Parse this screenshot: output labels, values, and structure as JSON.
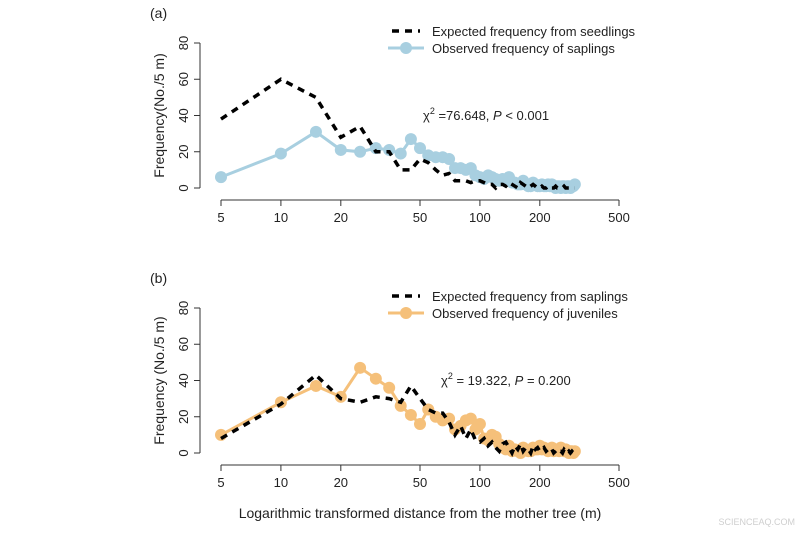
{
  "chart_data": [
    {
      "type": "line",
      "panel_label": "(a)",
      "ylabel": "Frequency(No./5 m)",
      "xlabel": "Logarithmic transformed distance from the mother tree (m)",
      "x_scale": "log",
      "xlim": [
        5,
        500
      ],
      "ylim": [
        0,
        80
      ],
      "x_ticks": [
        "5",
        "10",
        "20",
        "50",
        "100",
        "200",
        "500"
      ],
      "y_ticks": [
        "0",
        "20",
        "40",
        "60",
        "80"
      ],
      "annotation": {
        "chi": "χ",
        "sup": "2",
        "stat": " =76.648, ",
        "p": "P",
        "rest": " < 0.001"
      },
      "legend_position": "top-right",
      "x": [
        5,
        10,
        15,
        20,
        25,
        30,
        35,
        40,
        45,
        50,
        55,
        60,
        65,
        70,
        75,
        80,
        85,
        90,
        95,
        100,
        105,
        110,
        115,
        120,
        125,
        130,
        135,
        140,
        145,
        150,
        155,
        160,
        165,
        170,
        175,
        180,
        185,
        190,
        195,
        200,
        205,
        210,
        215,
        220,
        225,
        230,
        235,
        240,
        245,
        250,
        255,
        260,
        265,
        270,
        275,
        280,
        285,
        290,
        295,
        300
      ],
      "series": [
        {
          "name": "Expected frequency from seedlings",
          "style": "dashed",
          "color": "#000000",
          "values": [
            38,
            60,
            50,
            28,
            34,
            20,
            20,
            10,
            10,
            16,
            14,
            10,
            7,
            8,
            4,
            4,
            4,
            3,
            4,
            4,
            3,
            2,
            2,
            0,
            2,
            2,
            1,
            3,
            2,
            1,
            0,
            3,
            2,
            1,
            0,
            1,
            2,
            1,
            0,
            0,
            1,
            0,
            0,
            1,
            0,
            0,
            0,
            1,
            0,
            0,
            0,
            0,
            1,
            0,
            0,
            0,
            0,
            0,
            0,
            0
          ]
        },
        {
          "name": "Observed frequency of saplings",
          "style": "line+points",
          "color": "#a8cfe0",
          "values": [
            6,
            19,
            31,
            21,
            20,
            22,
            21,
            19,
            27,
            22,
            18,
            17,
            17,
            16,
            11,
            11,
            10,
            11,
            7,
            6,
            5,
            7,
            6,
            5,
            4,
            5,
            4,
            6,
            3,
            3,
            2,
            2,
            4,
            2,
            1,
            1,
            3,
            2,
            1,
            1,
            2,
            1,
            1,
            2,
            1,
            2,
            1,
            0,
            1,
            1,
            0,
            1,
            1,
            0,
            1,
            1,
            0,
            1,
            1,
            2
          ]
        }
      ]
    },
    {
      "type": "line",
      "panel_label": "(b)",
      "ylabel": "Frequency (No./5 m)",
      "x_scale": "log",
      "xlim": [
        5,
        500
      ],
      "ylim": [
        0,
        80
      ],
      "x_ticks": [
        "5",
        "10",
        "20",
        "50",
        "100",
        "200",
        "500"
      ],
      "y_ticks": [
        "0",
        "20",
        "40",
        "60",
        "80"
      ],
      "annotation": {
        "chi": "χ",
        "sup": "2",
        "stat": " = 19.322, ",
        "p": "P",
        "rest": " = 0.200"
      },
      "legend_position": "top-right",
      "x": [
        5,
        10,
        15,
        20,
        25,
        30,
        35,
        40,
        45,
        50,
        55,
        60,
        65,
        70,
        75,
        80,
        85,
        90,
        95,
        100,
        105,
        110,
        115,
        120,
        125,
        130,
        135,
        140,
        145,
        150,
        155,
        160,
        165,
        170,
        175,
        180,
        185,
        190,
        195,
        200,
        205,
        210,
        215,
        220,
        225,
        230,
        235,
        240,
        245,
        250,
        255,
        260,
        265,
        270,
        275,
        280,
        285,
        290,
        295,
        300
      ],
      "series": [
        {
          "name": "Expected frequency from saplings",
          "style": "dashed",
          "color": "#000000",
          "values": [
            8,
            27,
            43,
            30,
            28,
            31,
            30,
            28,
            37,
            30,
            24,
            22,
            22,
            17,
            10,
            15,
            8,
            13,
            7,
            6,
            8,
            4,
            6,
            3,
            1,
            5,
            6,
            3,
            0,
            4,
            2,
            5,
            1,
            3,
            2,
            0,
            4,
            2,
            3,
            1,
            2,
            3,
            1,
            2,
            1,
            2,
            0,
            1,
            2,
            1,
            1,
            0,
            2,
            1,
            0,
            1,
            0,
            1,
            0,
            1
          ]
        },
        {
          "name": "Observed frequency of juveniles",
          "style": "line+points",
          "color": "#f5c07a",
          "values": [
            10,
            28,
            37,
            31,
            47,
            41,
            36,
            26,
            21,
            16,
            24,
            20,
            18,
            19,
            13,
            15,
            18,
            19,
            13,
            16,
            8,
            7,
            10,
            9,
            5,
            3,
            2,
            4,
            1,
            2,
            1,
            0,
            3,
            2,
            1,
            1,
            3,
            2,
            2,
            4,
            2,
            3,
            2,
            1,
            2,
            3,
            1,
            2,
            2,
            1,
            3,
            2,
            1,
            2,
            1,
            0,
            1,
            1,
            0,
            1
          ]
        }
      ]
    }
  ],
  "watermark": "SCIENCEAQ.COM"
}
